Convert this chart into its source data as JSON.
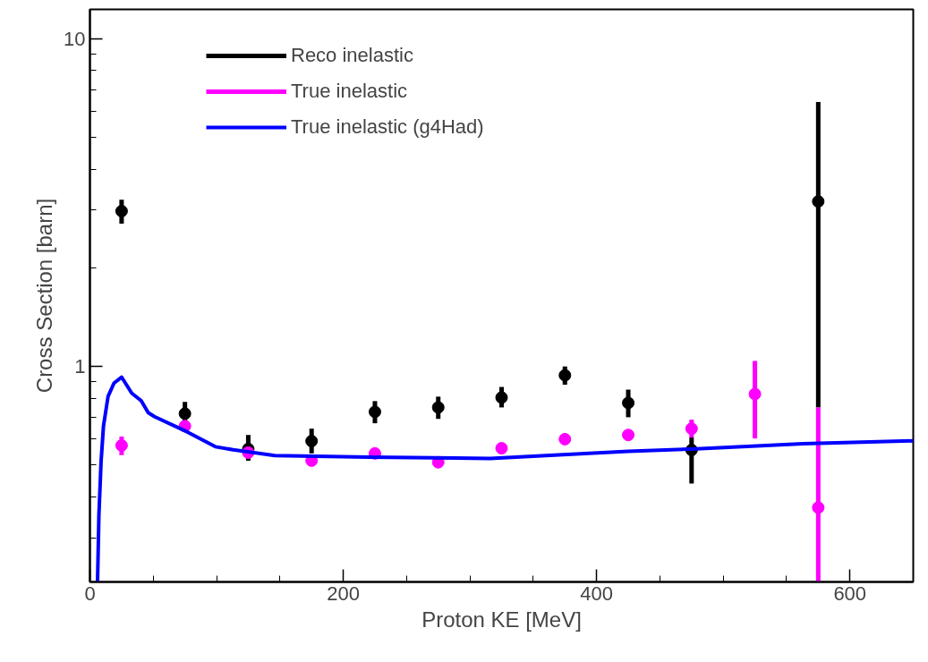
{
  "chart_data": {
    "type": "scatter",
    "xlabel": "Proton KE [MeV]",
    "ylabel": "Cross Section [barn]",
    "log": "y",
    "xlim": [
      0,
      650
    ],
    "xticks": [
      0,
      200,
      400,
      600
    ],
    "ylim": [
      0.22,
      12.3
    ],
    "yticks": [
      1,
      10
    ],
    "grid": false,
    "legend": "top left",
    "marker": "circle",
    "series": [
      {
        "name": "Reco inelastic",
        "color": "#000000",
        "x": [
          25,
          75,
          125,
          175,
          225,
          275,
          325,
          375,
          425,
          475,
          575
        ],
        "values": [
          2.98,
          0.718,
          0.56,
          0.592,
          0.727,
          0.75,
          0.804,
          0.94,
          0.774,
          0.556,
          3.19
        ],
        "errors": [
          [
            2.73,
            3.23
          ],
          [
            0.68,
            0.78
          ],
          [
            0.516,
            0.618
          ],
          [
            0.543,
            0.646
          ],
          [
            0.671,
            0.784
          ],
          [
            0.692,
            0.809
          ],
          [
            0.75,
            0.866
          ],
          [
            0.88,
            1.0
          ],
          [
            0.7,
            0.85
          ],
          [
            0.439,
            0.607
          ],
          [
            0.75,
            6.42
          ]
        ]
      },
      {
        "name": "True inelastic",
        "color": "#ff00ff",
        "x": [
          25,
          75,
          125,
          175,
          225,
          275,
          325,
          375,
          425,
          475,
          525,
          575
        ],
        "values": [
          0.574,
          0.658,
          0.546,
          0.516,
          0.543,
          0.51,
          0.563,
          0.6,
          0.618,
          0.646,
          0.824,
          0.371
        ],
        "errors": [
          [
            0.536,
            0.611
          ],
          null,
          null,
          null,
          null,
          null,
          null,
          null,
          null,
          [
            0.607,
            0.688
          ],
          [
            0.603,
            1.04
          ],
          [
            0.22,
            0.75
          ]
        ]
      },
      {
        "name": "True inelastic (g4Had)",
        "type": "line",
        "marker": "none",
        "color": "#0000ff",
        "x": [
          6,
          7.1,
          8.8,
          10.7,
          14.3,
          19,
          25,
          33,
          40.5,
          46,
          51,
          77,
          99,
          113,
          146,
          220,
          316,
          425,
          475,
          563,
          650
        ],
        "values": [
          0.22,
          0.353,
          0.513,
          0.658,
          0.81,
          0.89,
          0.928,
          0.829,
          0.786,
          0.723,
          0.703,
          0.631,
          0.569,
          0.557,
          0.535,
          0.529,
          0.524,
          0.551,
          0.56,
          0.581,
          0.593
        ]
      }
    ]
  }
}
